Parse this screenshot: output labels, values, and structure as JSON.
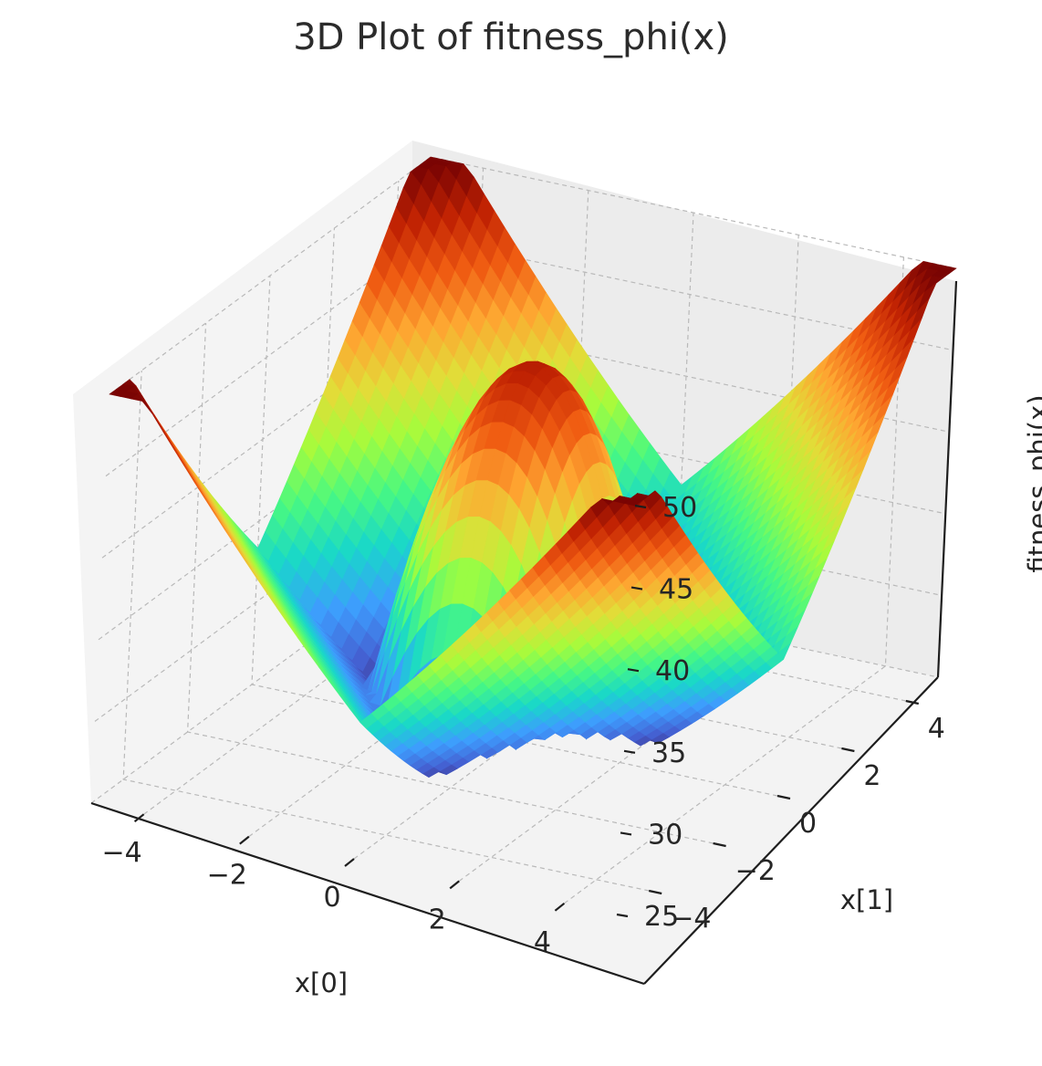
{
  "chart_data": {
    "type": "surface",
    "title": "3D Plot of fitness_phi(x)",
    "xlabel": "x[0]",
    "ylabel": "x[1]",
    "zlabel": "fitness_phi(x)",
    "xlim": [
      -5,
      5
    ],
    "ylim": [
      -5,
      5
    ],
    "zlim": [
      25,
      50
    ],
    "x_ticks": [
      -4,
      -2,
      0,
      2,
      4
    ],
    "y_ticks": [
      -4,
      -2,
      0,
      2,
      4
    ],
    "z_ticks": [
      25,
      30,
      35,
      40,
      45,
      50
    ],
    "x_tick_labels": [
      "−4",
      "−2",
      "0",
      "2",
      "4"
    ],
    "y_tick_labels": [
      "−4",
      "−2",
      "0",
      "2",
      "4"
    ],
    "z_tick_labels": [
      "25",
      "30",
      "35",
      "40",
      "45",
      "50"
    ],
    "colormap": "turbo",
    "surface_extrema": [
      {
        "x": 0,
        "y": 0,
        "z": 48
      },
      {
        "x": 5,
        "y": 5,
        "z": 50
      },
      {
        "x": -5,
        "y": 5,
        "z": 48
      },
      {
        "x": 5,
        "y": -5,
        "z": 50
      },
      {
        "x": -5,
        "y": -5,
        "z": 46
      },
      {
        "x": 2.5,
        "y": 0,
        "z": 27
      },
      {
        "x": 0,
        "y": 2.5,
        "z": 27
      }
    ],
    "grid": true
  }
}
